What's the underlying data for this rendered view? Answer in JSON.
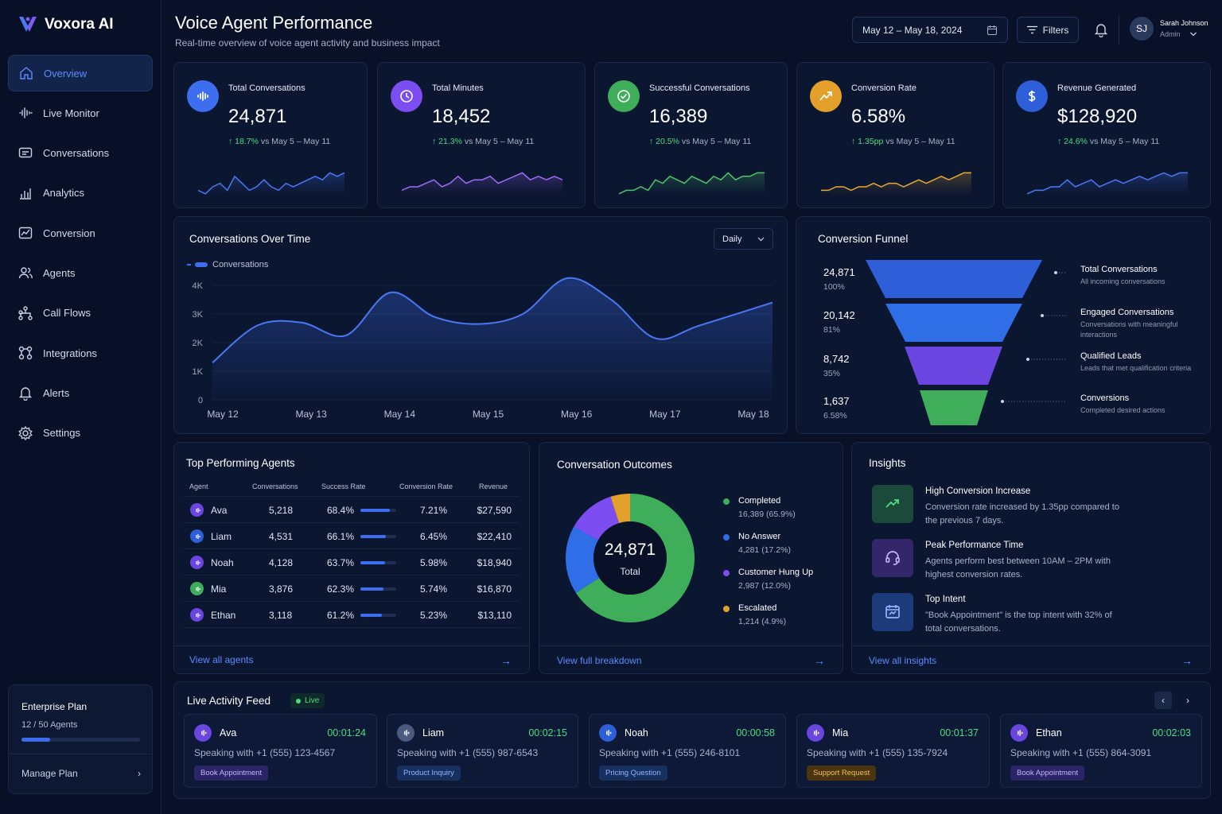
{
  "app": {
    "name": "Voxora AI"
  },
  "nav": [
    {
      "label": "Overview",
      "icon": "home-icon",
      "active": true
    },
    {
      "label": "Live Monitor",
      "icon": "waveform-icon"
    },
    {
      "label": "Conversations",
      "icon": "chat-icon"
    },
    {
      "label": "Analytics",
      "icon": "bar-chart-icon"
    },
    {
      "label": "Conversion",
      "icon": "trend-icon"
    },
    {
      "label": "Agents",
      "icon": "users-icon"
    },
    {
      "label": "Call Flows",
      "icon": "flow-icon"
    },
    {
      "label": "Integrations",
      "icon": "integrations-icon"
    },
    {
      "label": "Alerts",
      "icon": "bell-icon"
    },
    {
      "label": "Settings",
      "icon": "gear-icon"
    }
  ],
  "plan": {
    "title": "Enterprise Plan",
    "usage": "12 / 50 Agents",
    "progress": 0.24,
    "manage": "Manage Plan"
  },
  "header": {
    "title": "Voice Agent Performance",
    "subtitle": "Real-time overview of voice agent activity and business impact",
    "date_range": "May 12 – May 18, 2024",
    "filters": "Filters",
    "user_initials": "SJ",
    "user_name": "Sarah Johnson",
    "user_role": "Admin"
  },
  "kpis": [
    {
      "label": "Total Conversations",
      "value": "24,871",
      "delta": "18.7%",
      "compare": "vs May 5 – May 11",
      "color": "#3d6ef0",
      "icon": "waveform-icon",
      "spark_color": "#4a78f5"
    },
    {
      "label": "Total Minutes",
      "value": "18,452",
      "delta": "21.3%",
      "compare": "vs May 5 – May 11",
      "color": "#7c4df0",
      "icon": "clock-icon",
      "spark_color": "#9d6cf5"
    },
    {
      "label": "Successful Conversations",
      "value": "16,389",
      "delta": "20.5%",
      "compare": "vs May 5 – May 11",
      "color": "#3fae5a",
      "icon": "check-circle-icon",
      "spark_color": "#4ec26a"
    },
    {
      "label": "Conversion Rate",
      "value": "6.58%",
      "delta": "1.35pp",
      "compare": "vs May 5 – May 11",
      "color": "#e3a02a",
      "icon": "trend-up-icon",
      "spark_color": "#e8a92f"
    },
    {
      "label": "Revenue Generated",
      "value": "$128,920",
      "delta": "24.6%",
      "compare": "vs May 5 – May 11",
      "color": "#2f5fd8",
      "icon": "dollar-icon",
      "spark_color": "#4a78f5"
    }
  ],
  "conv_chart": {
    "title": "Conversations Over Time",
    "granularity": "Daily",
    "legend": "Conversations"
  },
  "chart_data": {
    "type": "area",
    "title": "Conversations Over Time",
    "categories": [
      "May 12",
      "May 13",
      "May 14",
      "May 15",
      "May 16",
      "May 17",
      "May 18"
    ],
    "series": [
      {
        "name": "Conversations",
        "x": [
          0,
          0.5,
          1,
          1.5,
          2,
          2.5,
          3,
          3.5,
          4,
          4.5,
          5,
          5.5,
          6
        ],
        "values": [
          1300,
          2600,
          2700,
          2250,
          3750,
          2900,
          2650,
          3000,
          4250,
          3500,
          2150,
          2600,
          3400
        ]
      }
    ],
    "yticks": [
      "0",
      "1K",
      "2K",
      "3K",
      "4K"
    ],
    "ylim": [
      0,
      4000
    ]
  },
  "funnel": {
    "title": "Conversion Funnel",
    "stages": [
      {
        "value": "24,871",
        "pct": "100%",
        "label": "Total Conversations",
        "desc": "All incoming conversations",
        "color": "#2f5fd8"
      },
      {
        "value": "20,142",
        "pct": "81%",
        "label": "Engaged Conversations",
        "desc": "Conversations with meaningful interactions",
        "color": "#2f6ee6"
      },
      {
        "value": "8,742",
        "pct": "35%",
        "label": "Qualified Leads",
        "desc": "Leads that met qualification criteria",
        "color": "#6a45e0"
      },
      {
        "value": "1,637",
        "pct": "6.58%",
        "label": "Conversions",
        "desc": "Completed desired actions",
        "color": "#3fae5a"
      }
    ]
  },
  "agents": {
    "title": "Top Performing Agents",
    "headers": [
      "Agent",
      "Conversations",
      "Success Rate",
      "Conversion Rate",
      "Revenue"
    ],
    "rows": [
      {
        "name": "Ava",
        "conversations": "5,218",
        "success": "68.4%",
        "success_frac": 0.82,
        "conversion": "7.21%",
        "revenue": "$27,590",
        "color": "#6a45e0"
      },
      {
        "name": "Liam",
        "conversations": "4,531",
        "success": "66.1%",
        "success_frac": 0.72,
        "conversion": "6.45%",
        "revenue": "$22,410",
        "color": "#2f5fd8"
      },
      {
        "name": "Noah",
        "conversations": "4,128",
        "success": "63.7%",
        "success_frac": 0.68,
        "conversion": "5.98%",
        "revenue": "$18,940",
        "color": "#6a45e0"
      },
      {
        "name": "Mia",
        "conversations": "3,876",
        "success": "62.3%",
        "success_frac": 0.64,
        "conversion": "5.74%",
        "revenue": "$16,870",
        "color": "#3fae5a"
      },
      {
        "name": "Ethan",
        "conversations": "3,118",
        "success": "61.2%",
        "success_frac": 0.6,
        "conversion": "5.23%",
        "revenue": "$13,110",
        "color": "#6a45e0"
      }
    ],
    "view_all": "View all agents"
  },
  "outcomes": {
    "title": "Conversation Outcomes",
    "total": "24,871",
    "total_label": "Total",
    "items": [
      {
        "name": "Completed",
        "value": "16,389 (65.9%)",
        "share": 65.9,
        "color": "#3fae5a"
      },
      {
        "name": "No Answer",
        "value": "4,281 (17.2%)",
        "share": 17.2,
        "color": "#2f6ee6"
      },
      {
        "name": "Customer Hung Up",
        "value": "2,987 (12.0%)",
        "share": 12.0,
        "color": "#7c4df0"
      },
      {
        "name": "Escalated",
        "value": "1,214 (4.9%)",
        "share": 4.9,
        "color": "#e3a02a"
      }
    ],
    "view_all": "View full breakdown"
  },
  "insights": {
    "title": "Insights",
    "items": [
      {
        "title": "High Conversion Increase",
        "desc": "Conversion rate increased by 1.35pp compared to the previous 7 days.",
        "icon": "trend-up-icon",
        "bg": "#1b4a3a",
        "color": "#4ade80"
      },
      {
        "title": "Peak Performance Time",
        "desc": "Agents perform best between 10AM – 2PM with highest conversion rates.",
        "icon": "headset-icon",
        "bg": "#33266b",
        "color": "#c4b5fd"
      },
      {
        "title": "Top Intent",
        "desc": "\"Book Appointment\" is the top intent with 32% of total conversations.",
        "icon": "calendar-icon",
        "bg": "#1d3a7a",
        "color": "#93b4ff"
      }
    ],
    "view_all": "View all insights"
  },
  "live": {
    "title": "Live Activity Feed",
    "badge": "Live",
    "cards": [
      {
        "name": "Ava",
        "time": "00:01:24",
        "speaking": "Speaking with +1 (555) 123-4567",
        "tag": "Book Appointment",
        "tag_bg": "#2b2466",
        "tag_color": "#c4b5fd",
        "color": "#6a45e0"
      },
      {
        "name": "Liam",
        "time": "00:02:15",
        "speaking": "Speaking with +1 (555) 987-6543",
        "tag": "Product Inquiry",
        "tag_bg": "#16305f",
        "tag_color": "#93b4ff",
        "color": "#4a5a80"
      },
      {
        "name": "Noah",
        "time": "00:00:58",
        "speaking": "Speaking with +1 (555) 246-8101",
        "tag": "Pricing Question",
        "tag_bg": "#16305f",
        "tag_color": "#93b4ff",
        "color": "#2f5fd8"
      },
      {
        "name": "Mia",
        "time": "00:01:37",
        "speaking": "Speaking with +1 (555) 135-7924",
        "tag": "Support Request",
        "tag_bg": "#4a3510",
        "tag_color": "#f3c15a",
        "color": "#6a45e0"
      },
      {
        "name": "Ethan",
        "time": "00:02:03",
        "speaking": "Speaking with +1 (555) 864-3091",
        "tag": "Book Appointment",
        "tag_bg": "#2b2466",
        "tag_color": "#c4b5fd",
        "color": "#6a45e0"
      }
    ]
  }
}
